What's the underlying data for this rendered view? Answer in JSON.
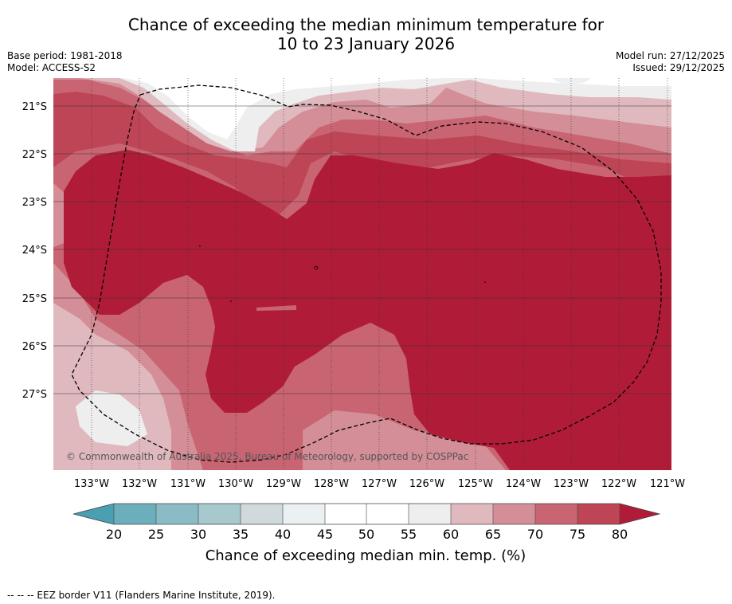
{
  "header": {
    "title_line1": "Chance of exceeding the median minimum temperature for",
    "title_line2": "10 to 23 January 2026",
    "base_period": "Base period: 1981-2018",
    "model": "Model: ACCESS-S2",
    "model_run": "Model run: 27/12/2025",
    "issued": "Issued: 29/12/2025"
  },
  "map": {
    "lat_labels": [
      "21°S",
      "22°S",
      "23°S",
      "24°S",
      "25°S",
      "26°S",
      "27°S"
    ],
    "lon_labels": [
      "133°W",
      "132°W",
      "131°W",
      "130°W",
      "129°W",
      "128°W",
      "127°W",
      "126°W",
      "125°W",
      "124°W",
      "123°W",
      "122°W",
      "121°W"
    ],
    "copyright": "© Commonwealth of Australia 2025, Bureau of Meteorology, supported by COSPPac"
  },
  "colorbar": {
    "ticks": [
      "20",
      "25",
      "30",
      "35",
      "40",
      "45",
      "50",
      "55",
      "60",
      "65",
      "70",
      "75",
      "80"
    ],
    "label": "Chance of exceeding median min. temp. (%)",
    "colors": {
      "under": "#4a9fb0",
      "c20_25": "#6daebd",
      "c25_30": "#8bbcc6",
      "c30_35": "#a7c8cd",
      "c35_40": "#d0dadd",
      "c40_45": "#ebf0f2",
      "c45_50": "#ffffff",
      "c50_55": "#ffffff",
      "c55_60": "#eeeeef",
      "c60_65": "#e0b9bf",
      "c65_70": "#d48e97",
      "c70_75": "#c96572",
      "c75_80": "#bd4555",
      "over": "#b01c38"
    }
  },
  "footer": {
    "legend_text": "--  --  -- EEZ border V11 (Flanders Marine Institute, 2019)."
  }
}
